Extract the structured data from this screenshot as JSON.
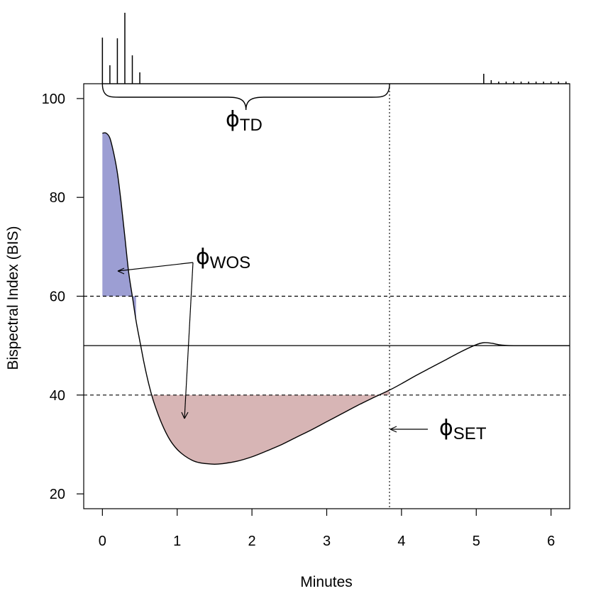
{
  "chart_data": {
    "type": "line",
    "xlabel": "Minutes",
    "ylabel": "Bispectral Index (BIS)",
    "xlim": [
      -0.25,
      6.25
    ],
    "ylim": [
      17,
      103
    ],
    "xticks": [
      0,
      1,
      2,
      3,
      4,
      5,
      6
    ],
    "yticks": [
      20,
      40,
      60,
      80,
      100
    ],
    "grid": false,
    "reference_lines": {
      "target": 50,
      "upper_bound": 60,
      "lower_bound": 40,
      "settling_time": 3.84
    },
    "curve": {
      "x": [
        0,
        0.05,
        0.1,
        0.15,
        0.2,
        0.25,
        0.3,
        0.35,
        0.4,
        0.45,
        0.5,
        0.55,
        0.6,
        0.65,
        0.7,
        0.8,
        0.9,
        1.0,
        1.1,
        1.2,
        1.3,
        1.4,
        1.5,
        1.6,
        1.8,
        2.0,
        2.2,
        2.4,
        2.6,
        2.8,
        3.0,
        3.2,
        3.4,
        3.6,
        3.84,
        4.0,
        4.2,
        4.4,
        4.6,
        4.8,
        5.0,
        5.1,
        5.2,
        5.3,
        5.4,
        5.5,
        5.6,
        5.8,
        6.0,
        6.25
      ],
      "y": [
        93,
        93,
        92,
        89,
        85,
        79,
        72,
        65,
        60,
        55,
        51,
        47,
        43.5,
        40.5,
        38,
        34,
        31,
        29,
        27.7,
        26.8,
        26.3,
        26.1,
        26.0,
        26.1,
        26.6,
        27.5,
        28.7,
        30.0,
        31.5,
        33.0,
        34.6,
        36.2,
        37.8,
        39.3,
        41,
        42.3,
        44,
        45.6,
        47.2,
        48.8,
        50.2,
        50.6,
        50.5,
        50.2,
        50.05,
        50,
        50,
        50,
        50,
        50
      ]
    },
    "shaded_regions": [
      {
        "label": "φWOS",
        "color": "#9c9ed3",
        "x_range": [
          0,
          0.45
        ],
        "bound": 60,
        "side": "above"
      },
      {
        "label": "φWOS",
        "color": "#d7b5b5",
        "x_range": [
          0.65,
          3.84
        ],
        "bound": 40,
        "side": "below"
      }
    ],
    "rug": {
      "x": [
        0,
        0.1,
        0.2,
        0.3,
        0.4,
        0.5,
        5.1,
        5.2,
        5.3,
        5.4,
        5.5,
        5.6,
        5.7,
        5.8,
        5.9,
        6.0,
        6.1,
        6.2
      ],
      "heights": [
        0.65,
        0.26,
        0.64,
        1.0,
        0.4,
        0.16,
        0.14,
        0.05,
        0.03,
        0.03,
        0.03,
        0.03,
        0.03,
        0.03,
        0.03,
        0.03,
        0.03,
        0.03
      ]
    },
    "annotations": {
      "td": {
        "main": "ϕ",
        "sub": "TD",
        "x_range": [
          0,
          3.84
        ]
      },
      "wos": {
        "main": "ϕ",
        "sub": "WOS"
      },
      "set": {
        "main": "ϕ",
        "sub": "SET"
      }
    }
  }
}
